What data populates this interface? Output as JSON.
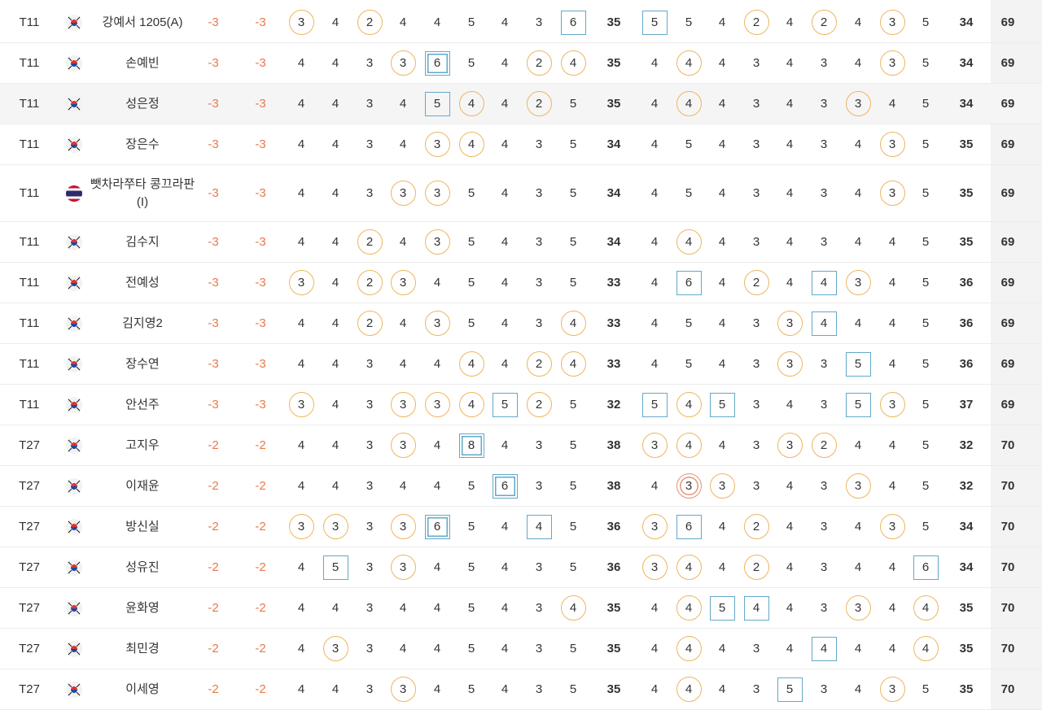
{
  "mark_types": {
    "b": "birdie",
    "e": "eagle",
    "o": "bogey",
    "d": "double-bogey"
  },
  "colors": {
    "under_par": "#e8794a",
    "birdie": "#eeb55d",
    "eagle": "#e3957f",
    "bogey": "#62a9c9"
  },
  "rows": [
    {
      "rank": "T11",
      "flag": "KR",
      "name": "강예서 1205(A)",
      "score": "-3",
      "today": "-3",
      "front": [
        "3b",
        "4",
        "2b",
        "4",
        "4",
        "5",
        "4",
        "3",
        "6o"
      ],
      "out": "35",
      "back": [
        "5o",
        "5",
        "4",
        "2b",
        "4",
        "2b",
        "4",
        "3b",
        "5"
      ],
      "in": "34",
      "total": "69"
    },
    {
      "rank": "T11",
      "flag": "KR",
      "name": "손예빈",
      "score": "-3",
      "today": "-3",
      "front": [
        "4",
        "4",
        "3",
        "3b",
        "6d",
        "5",
        "4",
        "2b",
        "4b"
      ],
      "out": "35",
      "back": [
        "4",
        "4b",
        "4",
        "3",
        "4",
        "3",
        "4",
        "3b",
        "5"
      ],
      "in": "34",
      "total": "69"
    },
    {
      "rank": "T11",
      "flag": "KR",
      "name": "성은정",
      "score": "-3",
      "today": "-3",
      "front": [
        "4",
        "4",
        "3",
        "4",
        "5o",
        "4b",
        "4",
        "2b",
        "5"
      ],
      "out": "35",
      "back": [
        "4",
        "4b",
        "4",
        "3",
        "4",
        "3",
        "3b",
        "4",
        "5"
      ],
      "in": "34",
      "total": "69",
      "highlight": true
    },
    {
      "rank": "T11",
      "flag": "KR",
      "name": "장은수",
      "score": "-3",
      "today": "-3",
      "front": [
        "4",
        "4",
        "3",
        "4",
        "3b",
        "4b",
        "4",
        "3",
        "5"
      ],
      "out": "34",
      "back": [
        "4",
        "5",
        "4",
        "3",
        "4",
        "3",
        "4",
        "3b",
        "5"
      ],
      "in": "35",
      "total": "69"
    },
    {
      "rank": "T11",
      "flag": "TH",
      "name": "뺏차라쭈타 콩끄라판(I)",
      "score": "-3",
      "today": "-3",
      "front": [
        "4",
        "4",
        "3",
        "3b",
        "3b",
        "5",
        "4",
        "3",
        "5"
      ],
      "out": "34",
      "back": [
        "4",
        "5",
        "4",
        "3",
        "4",
        "3",
        "4",
        "3b",
        "5"
      ],
      "in": "35",
      "total": "69",
      "tall": true
    },
    {
      "rank": "T11",
      "flag": "KR",
      "name": "김수지",
      "score": "-3",
      "today": "-3",
      "front": [
        "4",
        "4",
        "2b",
        "4",
        "3b",
        "5",
        "4",
        "3",
        "5"
      ],
      "out": "34",
      "back": [
        "4",
        "4b",
        "4",
        "3",
        "4",
        "3",
        "4",
        "4",
        "5"
      ],
      "in": "35",
      "total": "69"
    },
    {
      "rank": "T11",
      "flag": "KR",
      "name": "전예성",
      "score": "-3",
      "today": "-3",
      "front": [
        "3b",
        "4",
        "2b",
        "3b",
        "4",
        "5",
        "4",
        "3",
        "5"
      ],
      "out": "33",
      "back": [
        "4",
        "6o",
        "4",
        "2b",
        "4",
        "4o",
        "3b",
        "4",
        "5"
      ],
      "in": "36",
      "total": "69"
    },
    {
      "rank": "T11",
      "flag": "KR",
      "name": "김지영2",
      "score": "-3",
      "today": "-3",
      "front": [
        "4",
        "4",
        "2b",
        "4",
        "3b",
        "5",
        "4",
        "3",
        "4b"
      ],
      "out": "33",
      "back": [
        "4",
        "5",
        "4",
        "3",
        "3b",
        "4o",
        "4",
        "4",
        "5"
      ],
      "in": "36",
      "total": "69"
    },
    {
      "rank": "T11",
      "flag": "KR",
      "name": "장수연",
      "score": "-3",
      "today": "-3",
      "front": [
        "4",
        "4",
        "3",
        "4",
        "4",
        "4b",
        "4",
        "2b",
        "4b"
      ],
      "out": "33",
      "back": [
        "4",
        "5",
        "4",
        "3",
        "3b",
        "3",
        "5o",
        "4",
        "5"
      ],
      "in": "36",
      "total": "69"
    },
    {
      "rank": "T11",
      "flag": "KR",
      "name": "안선주",
      "score": "-3",
      "today": "-3",
      "front": [
        "3b",
        "4",
        "3",
        "3b",
        "3b",
        "4b",
        "5o",
        "2b",
        "5"
      ],
      "out": "32",
      "back": [
        "5o",
        "4b",
        "5o",
        "3",
        "4",
        "3",
        "5o",
        "3b",
        "5"
      ],
      "in": "37",
      "total": "69"
    },
    {
      "rank": "T27",
      "flag": "KR",
      "name": "고지우",
      "score": "-2",
      "today": "-2",
      "front": [
        "4",
        "4",
        "3",
        "3b",
        "4",
        "8d",
        "4",
        "3",
        "5"
      ],
      "out": "38",
      "back": [
        "3b",
        "4b",
        "4",
        "3",
        "3b",
        "2b",
        "4",
        "4",
        "5"
      ],
      "in": "32",
      "total": "70"
    },
    {
      "rank": "T27",
      "flag": "KR",
      "name": "이재윤",
      "score": "-2",
      "today": "-2",
      "front": [
        "4",
        "4",
        "3",
        "4",
        "4",
        "5",
        "6d",
        "3",
        "5"
      ],
      "out": "38",
      "back": [
        "4",
        "3e",
        "3b",
        "3",
        "4",
        "3",
        "3b",
        "4",
        "5"
      ],
      "in": "32",
      "total": "70"
    },
    {
      "rank": "T27",
      "flag": "KR",
      "name": "방신실",
      "score": "-2",
      "today": "-2",
      "front": [
        "3b",
        "3b",
        "3",
        "3b",
        "6d",
        "5",
        "4",
        "4o",
        "5"
      ],
      "out": "36",
      "back": [
        "3b",
        "6o",
        "4",
        "2b",
        "4",
        "3",
        "4",
        "3b",
        "5"
      ],
      "in": "34",
      "total": "70"
    },
    {
      "rank": "T27",
      "flag": "KR",
      "name": "성유진",
      "score": "-2",
      "today": "-2",
      "front": [
        "4",
        "5o",
        "3",
        "3b",
        "4",
        "5",
        "4",
        "3",
        "5"
      ],
      "out": "36",
      "back": [
        "3b",
        "4b",
        "4",
        "2b",
        "4",
        "3",
        "4",
        "4",
        "6o"
      ],
      "in": "34",
      "total": "70"
    },
    {
      "rank": "T27",
      "flag": "KR",
      "name": "윤화영",
      "score": "-2",
      "today": "-2",
      "front": [
        "4",
        "4",
        "3",
        "4",
        "4",
        "5",
        "4",
        "3",
        "4b"
      ],
      "out": "35",
      "back": [
        "4",
        "4b",
        "5o",
        "4o",
        "4",
        "3",
        "3b",
        "4",
        "4b"
      ],
      "in": "35",
      "total": "70"
    },
    {
      "rank": "T27",
      "flag": "KR",
      "name": "최민경",
      "score": "-2",
      "today": "-2",
      "front": [
        "4",
        "3b",
        "3",
        "4",
        "4",
        "5",
        "4",
        "3",
        "5"
      ],
      "out": "35",
      "back": [
        "4",
        "4b",
        "4",
        "3",
        "4",
        "4o",
        "4",
        "4",
        "4b"
      ],
      "in": "35",
      "total": "70"
    },
    {
      "rank": "T27",
      "flag": "KR",
      "name": "이세영",
      "score": "-2",
      "today": "-2",
      "front": [
        "4",
        "4",
        "3",
        "3b",
        "4",
        "5",
        "4",
        "3",
        "5"
      ],
      "out": "35",
      "back": [
        "4",
        "4b",
        "4",
        "3",
        "5o",
        "3",
        "4",
        "3b",
        "5"
      ],
      "in": "35",
      "total": "70"
    }
  ]
}
